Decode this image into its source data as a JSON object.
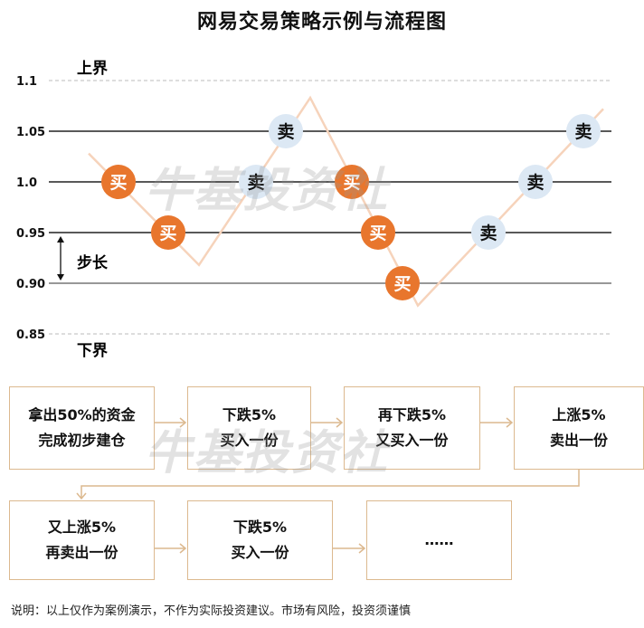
{
  "title": "网易交易策略示例与流程图",
  "watermark": "牛基投资社",
  "chart": {
    "upper_label": "上界",
    "lower_label": "下界",
    "step_label": "步长",
    "levels": [
      {
        "label": "1.1",
        "value": 1.1,
        "style": "dashed"
      },
      {
        "label": "1.05",
        "value": 1.05,
        "style": "solid"
      },
      {
        "label": "1.0",
        "value": 1.0,
        "style": "solid"
      },
      {
        "label": "0.95",
        "value": 0.95,
        "style": "solid"
      },
      {
        "label": "0.90",
        "value": 0.9,
        "style": "solid"
      },
      {
        "label": "0.85",
        "value": 0.85,
        "style": "dashed"
      }
    ],
    "price_path": [
      1.028,
      0.918,
      1.083,
      0.878,
      1.072
    ],
    "markers": [
      {
        "label": "买",
        "type": "buy",
        "price": 1.0
      },
      {
        "label": "买",
        "type": "buy",
        "price": 0.95
      },
      {
        "label": "卖",
        "type": "sell",
        "price": 1.0
      },
      {
        "label": "卖",
        "type": "sell",
        "price": 1.05
      },
      {
        "label": "买",
        "type": "buy",
        "price": 1.0
      },
      {
        "label": "买",
        "type": "buy",
        "price": 0.95
      },
      {
        "label": "买",
        "type": "buy",
        "price": 0.9
      },
      {
        "label": "卖",
        "type": "sell",
        "price": 0.95
      },
      {
        "label": "卖",
        "type": "sell",
        "price": 1.0
      },
      {
        "label": "卖",
        "type": "sell",
        "price": 1.05
      }
    ],
    "colors": {
      "buy": "#e8762d",
      "sell": "#dce8f4",
      "price_line": "#f6d3bb"
    }
  },
  "flow": {
    "steps": [
      {
        "line1": "拿出50%的资金",
        "line2": "完成初步建仓"
      },
      {
        "line1": "下跌5%",
        "line2": "买入一份"
      },
      {
        "line1": "再下跌5%",
        "line2": "又买入一份"
      },
      {
        "line1": "上涨5%",
        "line2": "卖出一份"
      },
      {
        "line1": "又上涨5%",
        "line2": "再卖出一份"
      },
      {
        "line1": "下跌5%",
        "line2": "买入一份"
      },
      {
        "line1": "……",
        "line2": ""
      }
    ],
    "border_color": "#dcb98f"
  },
  "footer": "说明：以上仅作为案例演示，不作为实际投资建议。市场有风险，投资须谨慎"
}
